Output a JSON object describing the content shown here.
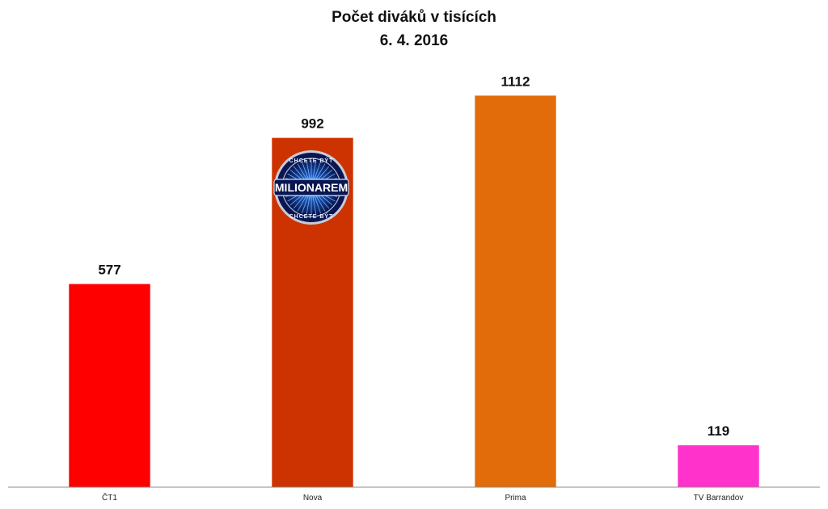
{
  "chart_data": {
    "type": "bar",
    "title": "Počet diváků v tisících",
    "subtitle": "6. 4. 2016",
    "categories": [
      "ČT1",
      "Nova",
      "Prima",
      "TV Barrandov"
    ],
    "values": [
      577,
      992,
      1112,
      119
    ],
    "data_labels": [
      "577",
      "992",
      "1112",
      "119"
    ],
    "colors": [
      "#ff0000",
      "#cc3300",
      "#e36c0a",
      "#ff33cc"
    ],
    "ylim": [
      0,
      1200
    ],
    "grid": false,
    "legend": "none",
    "xlabel": "",
    "ylabel": ""
  },
  "logo": {
    "icon": "milionarem-logo-icon",
    "text_main": "MILIONAREM",
    "text_top": "CHCETE BÝT",
    "text_bottom": "CHCETE BÝT"
  }
}
